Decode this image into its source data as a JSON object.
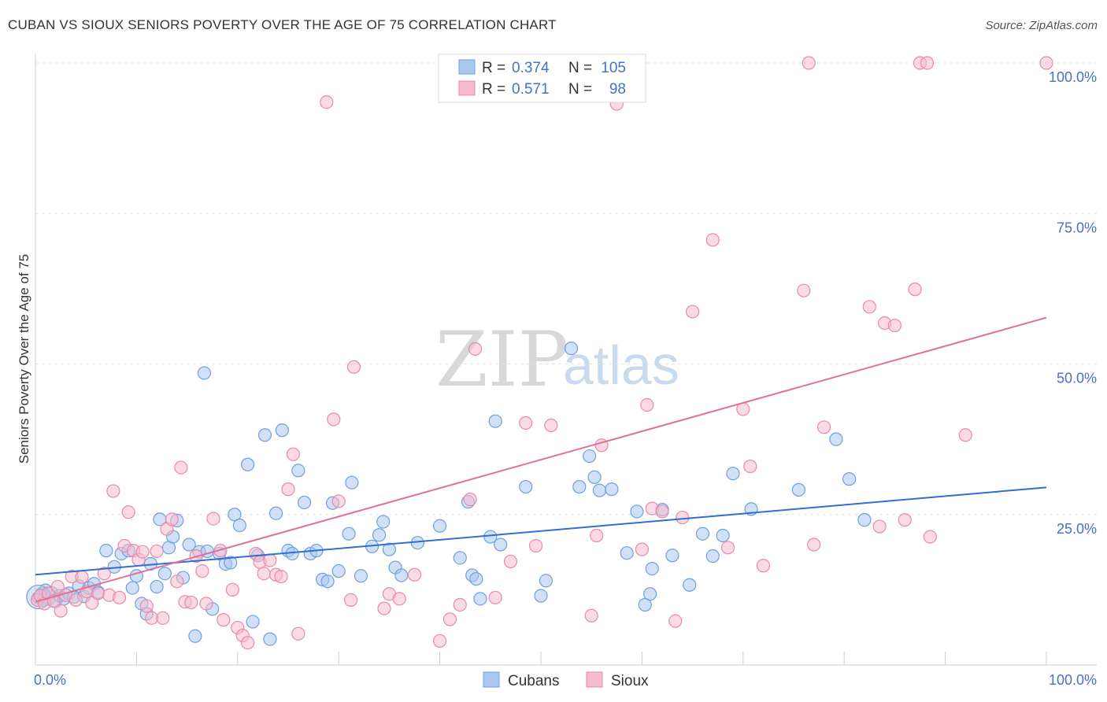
{
  "title": "CUBAN VS SIOUX SENIORS POVERTY OVER THE AGE OF 75 CORRELATION CHART",
  "source": "Source: ZipAtlas.com",
  "watermark": {
    "zip": "ZIP",
    "atlas": "atlas"
  },
  "legend": {
    "rows": [
      {
        "r_label": "R =",
        "r_value": "0.374",
        "n_label": "N =",
        "n_value": "105",
        "color": "#6fa0dc"
      },
      {
        "r_label": "R =",
        "r_value": "0.571",
        "n_label": "N =",
        "n_value": "98",
        "color": "#e88aa8"
      }
    ]
  },
  "bottom_legend": [
    "Cubans",
    "Sioux"
  ],
  "colors": {
    "cubans_fill": "#a9c7ee",
    "cubans_stroke": "#6fa0dc",
    "cubans_line": "#2f6fd0",
    "sioux_fill": "#f5bccd",
    "sioux_stroke": "#e88aa8",
    "sioux_line": "#e0709a",
    "tick_text": "#4472c4"
  },
  "chart_data": {
    "type": "scatter",
    "title": "CUBAN VS SIOUX SENIORS POVERTY OVER THE AGE OF 75 CORRELATION CHART",
    "xlabel": "",
    "ylabel": "Seniors Poverty Over the Age of 75",
    "xlim": [
      0,
      100
    ],
    "ylim": [
      0,
      100
    ],
    "x_tick_labels": [
      "0.0%",
      "100.0%"
    ],
    "y_ticks": [
      25,
      50,
      75,
      100
    ],
    "y_tick_labels": [
      "25.0%",
      "50.0%",
      "75.0%",
      "100.0%"
    ],
    "grid": true,
    "legend_position": "top-center",
    "series": [
      {
        "name": "Cubans",
        "trend": {
          "x": [
            0,
            100
          ],
          "y": [
            15.0,
            29.5
          ]
        },
        "points": [
          [
            0.3,
            11.2
          ],
          [
            0.6,
            11.8
          ],
          [
            0.8,
            10.8
          ],
          [
            1.0,
            12.4
          ],
          [
            1.3,
            11.0
          ],
          [
            1.6,
            12.0
          ],
          [
            2.0,
            10.6
          ],
          [
            2.4,
            11.5
          ],
          [
            2.8,
            11.0
          ],
          [
            3.3,
            11.9
          ],
          [
            3.8,
            11.3
          ],
          [
            4.3,
            13.1
          ],
          [
            4.8,
            11.4
          ],
          [
            5.3,
            12.8
          ],
          [
            5.8,
            13.5
          ],
          [
            6.2,
            12.1
          ],
          [
            7.0,
            19.0
          ],
          [
            7.8,
            16.3
          ],
          [
            8.5,
            18.5
          ],
          [
            9.2,
            19.0
          ],
          [
            9.6,
            12.8
          ],
          [
            10.0,
            14.8
          ],
          [
            10.5,
            10.2
          ],
          [
            11.0,
            8.5
          ],
          [
            11.4,
            16.8
          ],
          [
            12.0,
            13.0
          ],
          [
            12.3,
            24.2
          ],
          [
            12.8,
            15.2
          ],
          [
            13.2,
            19.5
          ],
          [
            13.6,
            21.3
          ],
          [
            14.0,
            24.0
          ],
          [
            14.6,
            14.5
          ],
          [
            15.2,
            20.0
          ],
          [
            15.8,
            4.8
          ],
          [
            16.2,
            18.8
          ],
          [
            16.7,
            48.5
          ],
          [
            17.0,
            18.9
          ],
          [
            17.5,
            9.3
          ],
          [
            18.2,
            18.5
          ],
          [
            18.8,
            16.8
          ],
          [
            19.3,
            17.0
          ],
          [
            19.7,
            25.0
          ],
          [
            20.2,
            23.2
          ],
          [
            21.0,
            33.3
          ],
          [
            21.5,
            7.2
          ],
          [
            22.0,
            18.2
          ],
          [
            22.7,
            38.2
          ],
          [
            23.2,
            4.3
          ],
          [
            23.8,
            25.2
          ],
          [
            24.4,
            39.0
          ],
          [
            25.0,
            19.0
          ],
          [
            25.4,
            18.5
          ],
          [
            26.0,
            32.3
          ],
          [
            26.6,
            27.0
          ],
          [
            27.2,
            18.5
          ],
          [
            27.8,
            19.0
          ],
          [
            28.4,
            14.2
          ],
          [
            28.9,
            13.9
          ],
          [
            29.4,
            26.9
          ],
          [
            30.0,
            15.6
          ],
          [
            31.0,
            21.8
          ],
          [
            31.3,
            30.3
          ],
          [
            32.2,
            14.8
          ],
          [
            33.3,
            19.7
          ],
          [
            34.0,
            21.6
          ],
          [
            34.4,
            23.8
          ],
          [
            35.0,
            19.2
          ],
          [
            35.6,
            16.2
          ],
          [
            36.2,
            14.9
          ],
          [
            37.8,
            20.3
          ],
          [
            40.0,
            23.1
          ],
          [
            42.0,
            17.8
          ],
          [
            42.8,
            27.1
          ],
          [
            43.2,
            14.9
          ],
          [
            43.6,
            14.3
          ],
          [
            44.0,
            11.0
          ],
          [
            45.0,
            21.3
          ],
          [
            45.5,
            40.5
          ],
          [
            46.0,
            20.0
          ],
          [
            48.5,
            29.6
          ],
          [
            50.0,
            11.5
          ],
          [
            50.5,
            14.0
          ],
          [
            53.0,
            52.6
          ],
          [
            53.8,
            29.6
          ],
          [
            54.8,
            34.7
          ],
          [
            55.3,
            31.2
          ],
          [
            55.8,
            29.0
          ],
          [
            57.0,
            29.2
          ],
          [
            58.5,
            18.6
          ],
          [
            59.5,
            25.5
          ],
          [
            60.3,
            10.0
          ],
          [
            60.8,
            11.8
          ],
          [
            61.0,
            16.0
          ],
          [
            62.0,
            25.8
          ],
          [
            63.0,
            18.2
          ],
          [
            64.7,
            13.3
          ],
          [
            66.0,
            21.8
          ],
          [
            67.0,
            18.1
          ],
          [
            68.0,
            21.5
          ],
          [
            69.0,
            31.8
          ],
          [
            70.8,
            25.9
          ],
          [
            75.5,
            29.1
          ],
          [
            79.2,
            37.5
          ],
          [
            80.5,
            30.9
          ],
          [
            82.0,
            24.1
          ]
        ]
      },
      {
        "name": "Sioux",
        "trend": {
          "x": [
            0,
            100
          ],
          "y": [
            10.5,
            57.7
          ]
        },
        "points": [
          [
            0.2,
            10.8
          ],
          [
            0.5,
            11.5
          ],
          [
            0.9,
            10.2
          ],
          [
            1.3,
            11.9
          ],
          [
            1.8,
            10.6
          ],
          [
            2.2,
            13.0
          ],
          [
            2.5,
            9.0
          ],
          [
            3.0,
            11.6
          ],
          [
            3.6,
            14.7
          ],
          [
            4.0,
            10.8
          ],
          [
            4.6,
            14.6
          ],
          [
            5.1,
            12.2
          ],
          [
            5.6,
            10.3
          ],
          [
            6.2,
            11.9
          ],
          [
            6.8,
            15.2
          ],
          [
            7.3,
            11.6
          ],
          [
            7.7,
            28.9
          ],
          [
            8.3,
            11.2
          ],
          [
            8.8,
            19.8
          ],
          [
            9.2,
            25.4
          ],
          [
            9.7,
            19.0
          ],
          [
            10.2,
            17.5
          ],
          [
            10.6,
            18.8
          ],
          [
            11.0,
            9.8
          ],
          [
            11.5,
            7.8
          ],
          [
            12.0,
            18.9
          ],
          [
            12.6,
            7.8
          ],
          [
            13.0,
            22.6
          ],
          [
            13.5,
            24.2
          ],
          [
            14.0,
            13.9
          ],
          [
            14.4,
            32.8
          ],
          [
            14.8,
            10.5
          ],
          [
            15.4,
            10.4
          ],
          [
            15.9,
            18.1
          ],
          [
            16.5,
            15.6
          ],
          [
            16.9,
            10.2
          ],
          [
            17.6,
            24.3
          ],
          [
            18.3,
            19.0
          ],
          [
            18.6,
            7.5
          ],
          [
            19.5,
            12.5
          ],
          [
            20.0,
            6.2
          ],
          [
            20.5,
            4.9
          ],
          [
            21.0,
            3.7
          ],
          [
            21.8,
            18.5
          ],
          [
            22.2,
            17.1
          ],
          [
            22.6,
            15.2
          ],
          [
            23.2,
            17.4
          ],
          [
            23.8,
            15.0
          ],
          [
            24.3,
            14.7
          ],
          [
            25.0,
            29.2
          ],
          [
            25.5,
            35.0
          ],
          [
            26.0,
            5.2
          ],
          [
            28.8,
            93.5
          ],
          [
            29.5,
            40.8
          ],
          [
            30.0,
            27.2
          ],
          [
            31.2,
            10.8
          ],
          [
            31.5,
            49.5
          ],
          [
            34.5,
            9.4
          ],
          [
            35.0,
            11.8
          ],
          [
            36.0,
            11.0
          ],
          [
            37.5,
            15.0
          ],
          [
            40.0,
            4.0
          ],
          [
            41.0,
            7.6
          ],
          [
            42.0,
            10.0
          ],
          [
            43.0,
            27.5
          ],
          [
            43.5,
            52.5
          ],
          [
            45.5,
            11.2
          ],
          [
            47.0,
            17.2
          ],
          [
            48.5,
            40.2
          ],
          [
            49.5,
            19.8
          ],
          [
            51.0,
            39.8
          ],
          [
            55.0,
            8.2
          ],
          [
            55.5,
            21.5
          ],
          [
            56.0,
            36.5
          ],
          [
            57.5,
            93.2
          ],
          [
            60.0,
            19.2
          ],
          [
            60.5,
            43.2
          ],
          [
            61.0,
            26.0
          ],
          [
            62.0,
            25.5
          ],
          [
            63.3,
            7.3
          ],
          [
            64.0,
            24.5
          ],
          [
            65.0,
            58.7
          ],
          [
            67.0,
            70.6
          ],
          [
            68.5,
            19.5
          ],
          [
            70.0,
            42.5
          ],
          [
            70.7,
            33.0
          ],
          [
            72.0,
            16.5
          ],
          [
            76.0,
            62.2
          ],
          [
            77.0,
            20.0
          ],
          [
            78.0,
            39.5
          ],
          [
            82.5,
            59.5
          ],
          [
            83.5,
            23.0
          ],
          [
            84.0,
            56.8
          ],
          [
            85.0,
            56.4
          ],
          [
            86.0,
            24.1
          ],
          [
            87.0,
            62.4
          ],
          [
            88.5,
            21.3
          ],
          [
            92.0,
            38.2
          ]
        ]
      },
      {
        "name": "Sioux (top)",
        "points": [
          [
            76.5,
            100
          ],
          [
            87.5,
            100
          ],
          [
            88.2,
            100
          ],
          [
            100,
            100
          ]
        ]
      }
    ]
  }
}
